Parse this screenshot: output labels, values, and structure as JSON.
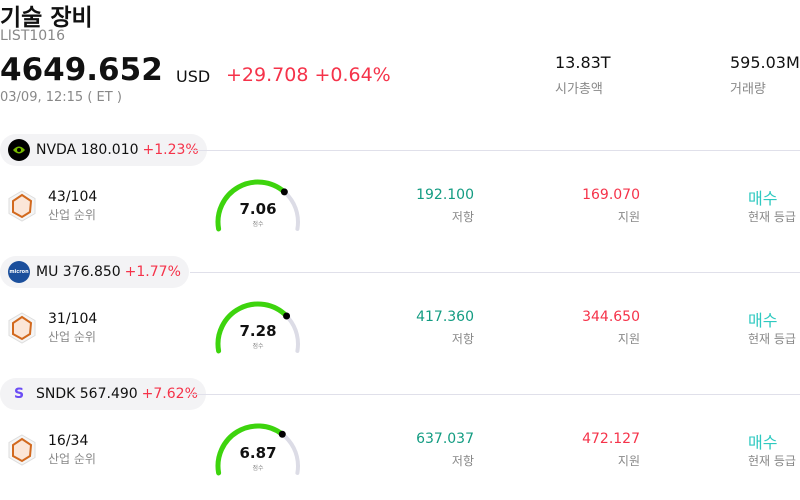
{
  "header": {
    "title": "기술 장비",
    "code": "LIST1016",
    "price": "4649.652",
    "currency": "USD",
    "change": "+29.708 +0.64%",
    "time": "03/09, 12:15 ( ET )",
    "stats": [
      {
        "value": "13.83T",
        "label": "시가총액"
      },
      {
        "value": "595.03M",
        "label": "거래량"
      }
    ]
  },
  "labels": {
    "rank": "산업 순위",
    "score": "점수",
    "resistance": "저항",
    "support": "지원",
    "rating": "현재 등급"
  },
  "colors": {
    "up": "#f5334a",
    "resistance": "#139c82",
    "rating": "#2ec9c0",
    "gauge": "#3dd40d"
  },
  "stocks": [
    {
      "ticker_line": "NVDA 180.010",
      "change": "+1.23%",
      "logo": "nvidia-logo",
      "rank": "43/104",
      "score": "7.06",
      "score_fraction": 0.706,
      "resistance": "192.100",
      "support": "169.070",
      "rating": "매수"
    },
    {
      "ticker_line": "MU 376.850",
      "change": "+1.77%",
      "logo": "micron-logo",
      "rank": "31/104",
      "score": "7.28",
      "score_fraction": 0.728,
      "resistance": "417.360",
      "support": "344.650",
      "rating": "매수"
    },
    {
      "ticker_line": "SNDK 567.490",
      "change": "+7.62%",
      "logo": "sandisk-logo",
      "logo_text": "S",
      "rank": "16/34",
      "score": "6.87",
      "score_fraction": 0.687,
      "resistance": "637.037",
      "support": "472.127",
      "rating": "매수"
    }
  ]
}
